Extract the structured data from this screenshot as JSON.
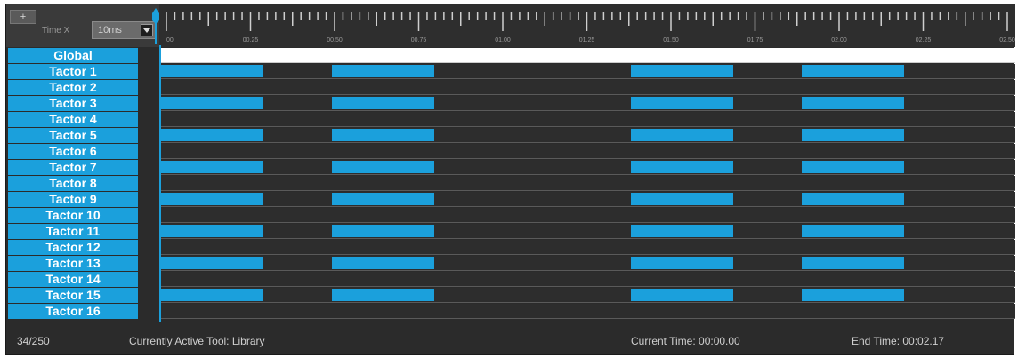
{
  "toolbar": {
    "add_label": "+",
    "time_x_label": "Time X",
    "zoom_value": "10ms"
  },
  "ruler": {
    "labels": [
      "00",
      "00.25",
      "00.50",
      "00.75",
      "01.00",
      "01.25",
      "01.50",
      "01.75",
      "02.00",
      "02.25",
      "02.50"
    ]
  },
  "tracks": [
    {
      "label": "Global",
      "pulses": []
    },
    {
      "label": "Tactor 1",
      "pulses": [
        [
          0,
          0.12
        ],
        [
          0.2,
          0.32
        ],
        [
          0.55,
          0.67
        ],
        [
          0.75,
          0.87
        ]
      ]
    },
    {
      "label": "Tactor 2",
      "pulses": []
    },
    {
      "label": "Tactor 3",
      "pulses": [
        [
          0,
          0.12
        ],
        [
          0.2,
          0.32
        ],
        [
          0.55,
          0.67
        ],
        [
          0.75,
          0.87
        ]
      ]
    },
    {
      "label": "Tactor 4",
      "pulses": []
    },
    {
      "label": "Tactor 5",
      "pulses": [
        [
          0,
          0.12
        ],
        [
          0.2,
          0.32
        ],
        [
          0.55,
          0.67
        ],
        [
          0.75,
          0.87
        ]
      ]
    },
    {
      "label": "Tactor 6",
      "pulses": []
    },
    {
      "label": "Tactor 7",
      "pulses": [
        [
          0,
          0.12
        ],
        [
          0.2,
          0.32
        ],
        [
          0.55,
          0.67
        ],
        [
          0.75,
          0.87
        ]
      ]
    },
    {
      "label": "Tactor 8",
      "pulses": []
    },
    {
      "label": "Tactor 9",
      "pulses": [
        [
          0,
          0.12
        ],
        [
          0.2,
          0.32
        ],
        [
          0.55,
          0.67
        ],
        [
          0.75,
          0.87
        ]
      ]
    },
    {
      "label": "Tactor 10",
      "pulses": []
    },
    {
      "label": "Tactor 11",
      "pulses": [
        [
          0,
          0.12
        ],
        [
          0.2,
          0.32
        ],
        [
          0.55,
          0.67
        ],
        [
          0.75,
          0.87
        ]
      ]
    },
    {
      "label": "Tactor 12",
      "pulses": []
    },
    {
      "label": "Tactor 13",
      "pulses": [
        [
          0,
          0.12
        ],
        [
          0.2,
          0.32
        ],
        [
          0.55,
          0.67
        ],
        [
          0.75,
          0.87
        ]
      ]
    },
    {
      "label": "Tactor 14",
      "pulses": []
    },
    {
      "label": "Tactor 15",
      "pulses": [
        [
          0,
          0.12
        ],
        [
          0.2,
          0.32
        ],
        [
          0.55,
          0.67
        ],
        [
          0.75,
          0.87
        ]
      ]
    },
    {
      "label": "Tactor 16",
      "pulses": []
    }
  ],
  "status": {
    "count": "34/250",
    "active_tool": "Currently Active Tool: Library",
    "current_time": "Current Time: 00:00.00",
    "end_time": "End Time: 00:02.17"
  },
  "colors": {
    "accent": "#1ba0dc",
    "background": "#2b2b2b"
  }
}
